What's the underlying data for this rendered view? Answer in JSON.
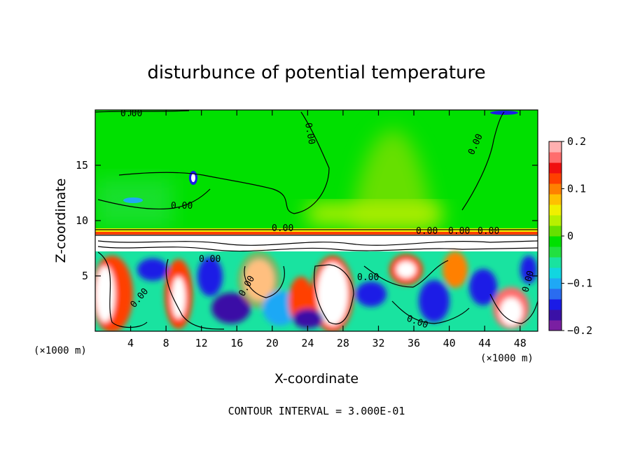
{
  "chart_data": {
    "type": "heatmap",
    "title": "disturbunce of potential temperature",
    "xlabel": "X-coordinate",
    "ylabel": "Z-coordinate",
    "x_unit_left": "(×1000 m)",
    "x_unit_right": "(×1000 m)",
    "xlim": [
      0,
      50
    ],
    "ylim": [
      0,
      20
    ],
    "x_ticks": [
      4,
      8,
      12,
      16,
      20,
      24,
      28,
      32,
      36,
      40,
      44,
      48
    ],
    "x_tick_labels": [
      "4",
      "8",
      "12",
      "16",
      "20",
      "24",
      "28",
      "32",
      "36",
      "40",
      "44",
      "48"
    ],
    "y_ticks": [
      5,
      10,
      15
    ],
    "y_tick_labels": [
      "5",
      "10",
      "15"
    ],
    "colorbar": {
      "min": -0.2,
      "max": 0.2,
      "tick_values": [
        0.2,
        0.1,
        0,
        -0.1,
        -0.2
      ],
      "tick_labels": [
        "0.2",
        "0.1",
        "0",
        "−0.1",
        "−0.2"
      ],
      "colors": [
        "#7a1fa2",
        "#3a10a6",
        "#1b1be6",
        "#2a6cf0",
        "#1fa8f5",
        "#11d6e0",
        "#19e3a0",
        "#22e040",
        "#00e000",
        "#66e000",
        "#b8f000",
        "#f0f000",
        "#ffc000",
        "#ff8000",
        "#ff4000",
        "#f01010",
        "#ff6d6d",
        "#ffb0b0"
      ]
    },
    "contour_labels": [
      "0.00",
      "0.00",
      "0.00",
      "0.00",
      "0.00",
      "0.00",
      "0.00",
      "0.00",
      "0.00",
      "0.00",
      "0.00",
      "0.00",
      "0.00",
      "0.00"
    ],
    "note": "CONTOUR INTERVAL = 3.000E-01"
  }
}
